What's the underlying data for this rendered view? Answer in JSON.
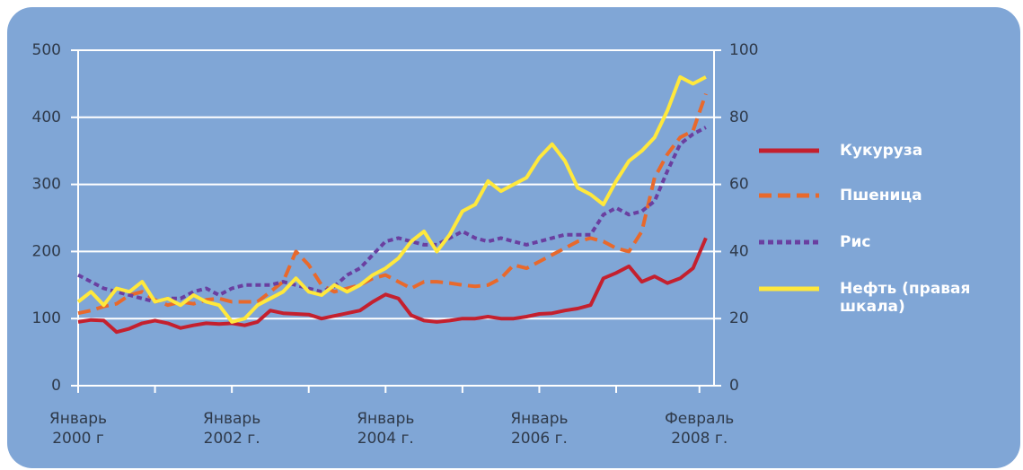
{
  "chart_data": {
    "type": "line",
    "x": [
      "2000-01",
      "2000-03",
      "2000-05",
      "2000-07",
      "2000-09",
      "2000-11",
      "2001-01",
      "2001-03",
      "2001-05",
      "2001-07",
      "2001-09",
      "2001-11",
      "2002-01",
      "2002-03",
      "2002-05",
      "2002-07",
      "2002-09",
      "2002-11",
      "2003-01",
      "2003-03",
      "2003-05",
      "2003-07",
      "2003-09",
      "2003-11",
      "2004-01",
      "2004-03",
      "2004-05",
      "2004-07",
      "2004-09",
      "2004-11",
      "2005-01",
      "2005-03",
      "2005-05",
      "2005-07",
      "2005-09",
      "2005-11",
      "2006-01",
      "2006-03",
      "2006-05",
      "2006-07",
      "2006-09",
      "2006-11",
      "2007-01",
      "2007-03",
      "2007-05",
      "2007-07",
      "2007-09",
      "2007-11",
      "2008-01",
      "2008-03"
    ],
    "xlim": [
      "2000-01",
      "2008-04"
    ],
    "xticks": [
      {
        "value": "2000-01",
        "label": "Январь 2000 г"
      },
      "2001-01",
      {
        "value": "2002-01",
        "label": "Январь 2002 г."
      },
      "2003-01",
      {
        "value": "2004-01",
        "label": "Январь 2004 г."
      },
      "2005-01",
      {
        "value": "2006-01",
        "label": "Январь 2006 г."
      },
      "2007-01",
      {
        "value": "2008-02",
        "label": "Февраль 2008 г."
      }
    ],
    "ylim": [
      0,
      500
    ],
    "yticks": [
      0,
      100,
      200,
      300,
      400,
      500
    ],
    "y2lim": [
      0,
      100
    ],
    "y2ticks": [
      0,
      20,
      40,
      60,
      80,
      100
    ],
    "grid": true,
    "legend": "right",
    "series": [
      {
        "name": "Кукуруза",
        "color": "#c4202e",
        "style": "solid",
        "values": [
          95,
          98,
          97,
          80,
          85,
          93,
          97,
          93,
          86,
          90,
          93,
          92,
          93,
          90,
          95,
          112,
          108,
          107,
          106,
          100,
          104,
          108,
          112,
          125,
          136,
          130,
          105,
          97,
          95,
          97,
          100,
          100,
          103,
          100,
          100,
          103,
          107,
          108,
          112,
          115,
          120,
          160,
          168,
          178,
          155,
          163,
          153,
          160,
          175,
          220
        ]
      },
      {
        "name": "Пшеница",
        "color": "#e8692c",
        "style": "dashed",
        "values": [
          108,
          112,
          118,
          122,
          135,
          140,
          128,
          120,
          125,
          122,
          128,
          130,
          125,
          125,
          125,
          140,
          155,
          200,
          180,
          150,
          140,
          145,
          150,
          160,
          165,
          155,
          145,
          155,
          155,
          153,
          150,
          148,
          150,
          160,
          180,
          175,
          185,
          195,
          205,
          215,
          220,
          215,
          205,
          200,
          230,
          310,
          345,
          370,
          380,
          435
        ]
      },
      {
        "name": "Рис",
        "color": "#6a3fa0",
        "style": "dotted",
        "values": [
          165,
          155,
          145,
          140,
          135,
          130,
          125,
          130,
          130,
          140,
          145,
          135,
          145,
          150,
          150,
          150,
          155,
          150,
          145,
          140,
          148,
          165,
          175,
          195,
          215,
          220,
          215,
          210,
          210,
          220,
          230,
          220,
          215,
          220,
          215,
          210,
          215,
          220,
          225,
          225,
          225,
          255,
          265,
          255,
          260,
          275,
          320,
          360,
          375,
          385
        ]
      },
      {
        "name": "Нефть (правая шкала)",
        "color": "#ffe83c",
        "style": "solid",
        "axis": "y2",
        "values": [
          25,
          28,
          24,
          29,
          28,
          31,
          25,
          26,
          24,
          27,
          25,
          24,
          19,
          20,
          24,
          26,
          28,
          32,
          28,
          27,
          30,
          28,
          30,
          33,
          35,
          38,
          43,
          46,
          40,
          45,
          52,
          54,
          61,
          58,
          60,
          62,
          68,
          72,
          67,
          59,
          57,
          54,
          61,
          67,
          70,
          74,
          82,
          92,
          90,
          92
        ]
      }
    ]
  }
}
